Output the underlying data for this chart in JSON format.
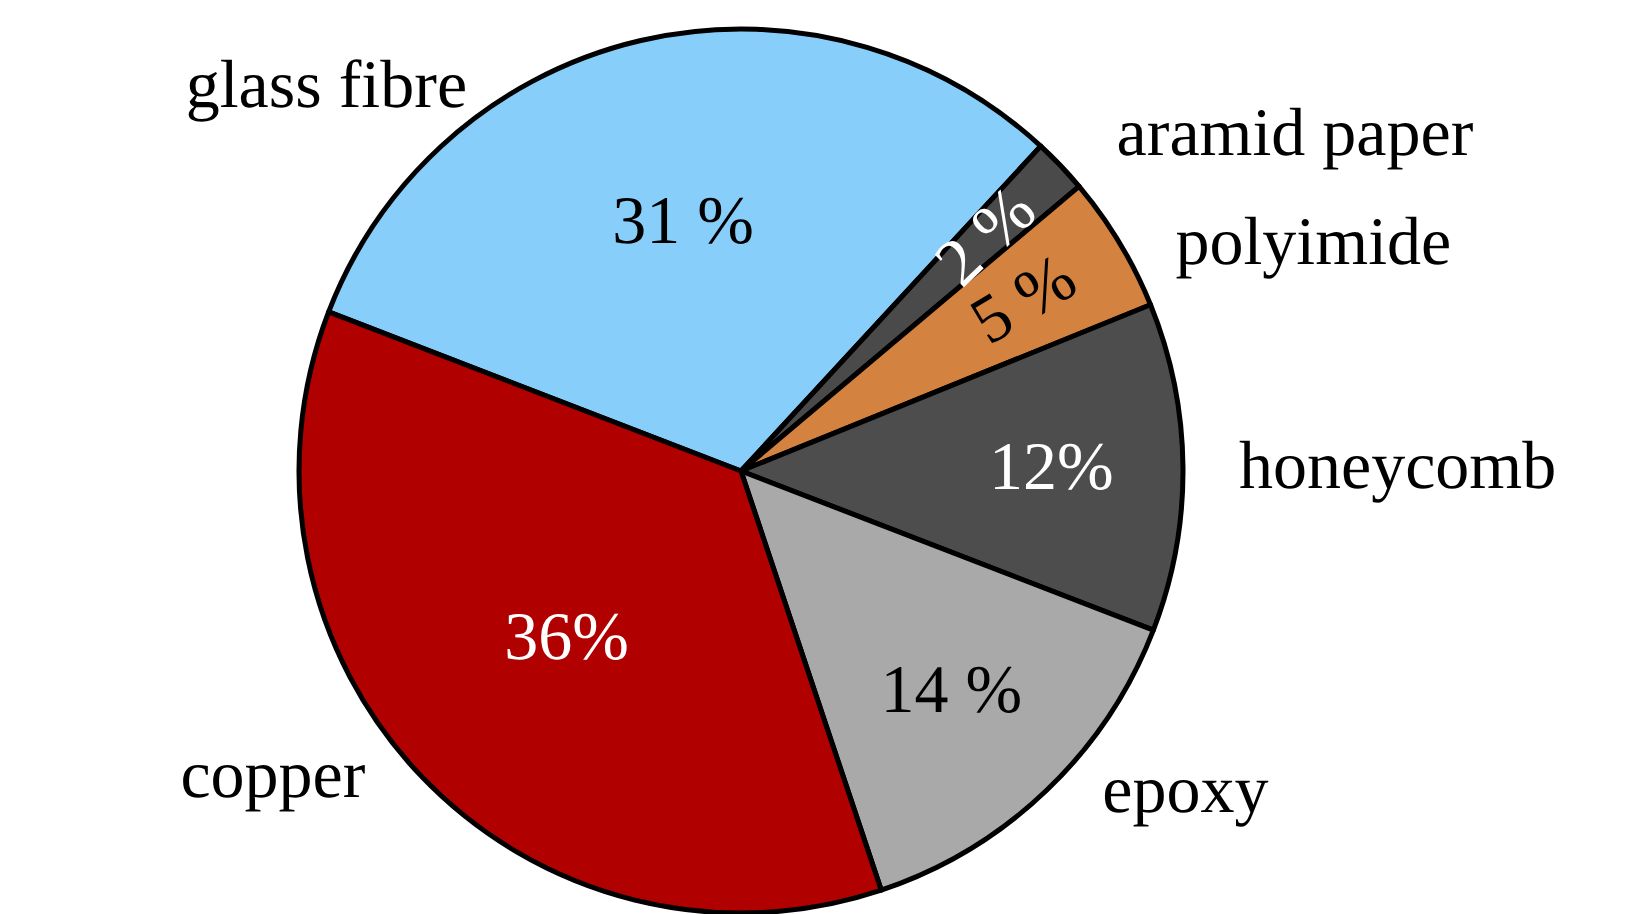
{
  "chart_data": {
    "type": "pie",
    "categories": [
      "glass fibre",
      "aramid paper",
      "polyimide",
      "honeycomb",
      "epoxy",
      "copper"
    ],
    "values": [
      31,
      2,
      5,
      12,
      14,
      36
    ],
    "colors": [
      "#87cefa",
      "#4a4a4a",
      "#d4823f",
      "#4d4d4d",
      "#a9a9a9",
      "#b00000"
    ],
    "value_labels": [
      "31 %",
      "2 %",
      "5 %",
      "12%",
      "14 %",
      "36%"
    ]
  }
}
